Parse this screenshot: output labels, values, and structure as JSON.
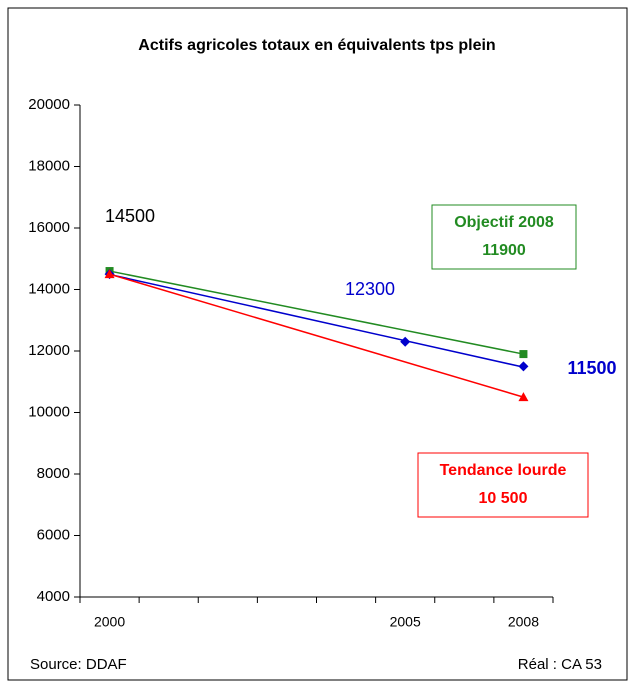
{
  "chart_data": {
    "type": "line",
    "title": "Actifs agricoles totaux en équivalents tps plein",
    "categories": [
      "2000",
      null,
      null,
      null,
      null,
      "2005",
      null,
      "2008"
    ],
    "series": [
      {
        "color": "#228b22",
        "marker": "square",
        "values": [
          14600,
          null,
          null,
          null,
          null,
          null,
          null,
          11900
        ]
      },
      {
        "color": "#0000cc",
        "marker": "diamond",
        "values": [
          14500,
          null,
          null,
          null,
          null,
          12300,
          null,
          11500
        ]
      },
      {
        "color": "#ff0000",
        "marker": "triangle",
        "values": [
          14500,
          null,
          null,
          null,
          null,
          null,
          null,
          10500
        ]
      }
    ],
    "trendline": true,
    "ylim": [
      4000,
      20000
    ],
    "yticks": [
      4000,
      6000,
      8000,
      10000,
      12000,
      14000,
      16000,
      18000,
      20000
    ],
    "annotations": [
      {
        "text": "14500",
        "color": "#000000"
      },
      {
        "text": "12300",
        "color": "#0000cc"
      },
      {
        "text": "11500",
        "color": "#0000cc"
      }
    ],
    "boxes": [
      {
        "lines": [
          "Objectif 2008",
          "11900"
        ],
        "color": "#228b22"
      },
      {
        "lines": [
          "Tendance lourde",
          "10 500"
        ],
        "color": "#ff0000"
      }
    ],
    "source": "Source: DDAF",
    "credit": "Réal : CA 53"
  }
}
